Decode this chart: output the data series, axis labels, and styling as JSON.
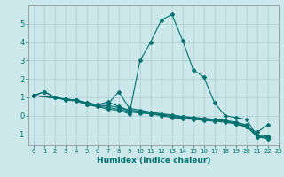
{
  "xlabel": "Humidex (Indice chaleur)",
  "ylabel": "",
  "xlim": [
    -0.5,
    23
  ],
  "ylim": [
    -1.6,
    6.0
  ],
  "xticks": [
    0,
    1,
    2,
    3,
    4,
    5,
    6,
    7,
    8,
    9,
    10,
    11,
    12,
    13,
    14,
    15,
    16,
    17,
    18,
    19,
    20,
    21,
    22,
    23
  ],
  "yticks": [
    -1,
    0,
    1,
    2,
    3,
    4,
    5
  ],
  "background_color": "#cce8ea",
  "grid_color": "#aacccc",
  "line_color": "#007070",
  "lines": [
    {
      "x": [
        0,
        1,
        2,
        3,
        4,
        5,
        6,
        7,
        8,
        9,
        10,
        11,
        12,
        13,
        14,
        15,
        16,
        17,
        18,
        19,
        20,
        21,
        22
      ],
      "y": [
        1.1,
        1.3,
        1.0,
        0.85,
        0.8,
        0.6,
        0.5,
        0.35,
        0.3,
        0.1,
        3.0,
        4.0,
        5.2,
        5.5,
        4.1,
        2.5,
        2.1,
        0.7,
        0.0,
        -0.1,
        -0.2,
        -1.1,
        -1.15
      ]
    },
    {
      "x": [
        0,
        3,
        4,
        5,
        6,
        7,
        8,
        9,
        10,
        11,
        12,
        13,
        14,
        15,
        16,
        17,
        18,
        19,
        20,
        21,
        22
      ],
      "y": [
        1.1,
        0.9,
        0.85,
        0.7,
        0.6,
        0.75,
        0.5,
        0.3,
        0.25,
        0.15,
        0.1,
        0.0,
        -0.05,
        -0.1,
        -0.15,
        -0.2,
        -0.25,
        -0.35,
        -0.5,
        -1.1,
        -1.2
      ]
    },
    {
      "x": [
        0,
        3,
        4,
        5,
        6,
        7,
        8,
        9,
        10,
        11,
        12,
        13,
        14,
        15,
        16,
        17,
        18,
        19,
        20,
        21,
        22
      ],
      "y": [
        1.1,
        0.9,
        0.85,
        0.65,
        0.55,
        0.55,
        0.45,
        0.25,
        0.2,
        0.1,
        0.05,
        -0.05,
        -0.1,
        -0.15,
        -0.2,
        -0.25,
        -0.3,
        -0.4,
        -0.55,
        -1.15,
        -1.25
      ]
    },
    {
      "x": [
        0,
        1,
        2,
        3,
        4,
        5,
        6,
        7,
        8,
        9,
        10,
        11,
        12,
        13,
        14,
        15,
        16,
        17,
        18,
        19,
        20,
        21,
        22
      ],
      "y": [
        1.1,
        1.3,
        1.0,
        0.9,
        0.85,
        0.7,
        0.6,
        0.65,
        1.3,
        0.4,
        0.3,
        0.2,
        0.1,
        0.05,
        -0.05,
        -0.1,
        -0.15,
        -0.2,
        -0.3,
        -0.45,
        -0.6,
        -1.05,
        -1.1
      ]
    },
    {
      "x": [
        0,
        3,
        4,
        5,
        6,
        7,
        8,
        9,
        10,
        11,
        12,
        13,
        14,
        15,
        16,
        17,
        18,
        19,
        20,
        21,
        22
      ],
      "y": [
        1.1,
        0.9,
        0.85,
        0.6,
        0.5,
        0.45,
        0.35,
        0.2,
        0.15,
        0.1,
        0.0,
        -0.1,
        -0.15,
        -0.2,
        -0.25,
        -0.3,
        -0.35,
        -0.45,
        -0.6,
        -0.9,
        -0.5
      ]
    }
  ]
}
